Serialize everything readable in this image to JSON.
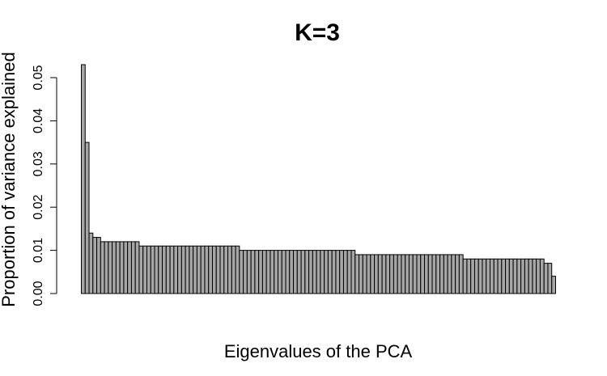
{
  "chart_data": {
    "type": "bar",
    "title": "K=3",
    "xlabel": "Eigenvalues of the PCA",
    "ylabel": "Proportion of variance explained",
    "ylim": [
      0,
      0.055
    ],
    "yticks": [
      "0.00",
      "0.01",
      "0.02",
      "0.03",
      "0.04",
      "0.05"
    ],
    "grid": false,
    "bar_fill": "#a6a6a6",
    "bar_stroke": "#000000",
    "values": [
      0.053,
      0.035,
      0.014,
      0.013,
      0.013,
      0.012,
      0.012,
      0.012,
      0.012,
      0.012,
      0.012,
      0.012,
      0.012,
      0.012,
      0.012,
      0.011,
      0.011,
      0.011,
      0.011,
      0.011,
      0.011,
      0.011,
      0.011,
      0.011,
      0.011,
      0.011,
      0.011,
      0.011,
      0.011,
      0.011,
      0.011,
      0.011,
      0.011,
      0.011,
      0.011,
      0.011,
      0.011,
      0.011,
      0.011,
      0.011,
      0.011,
      0.01,
      0.01,
      0.01,
      0.01,
      0.01,
      0.01,
      0.01,
      0.01,
      0.01,
      0.01,
      0.01,
      0.01,
      0.01,
      0.01,
      0.01,
      0.01,
      0.01,
      0.01,
      0.01,
      0.01,
      0.01,
      0.01,
      0.01,
      0.01,
      0.01,
      0.01,
      0.01,
      0.01,
      0.01,
      0.01,
      0.009,
      0.009,
      0.009,
      0.009,
      0.009,
      0.009,
      0.009,
      0.009,
      0.009,
      0.009,
      0.009,
      0.009,
      0.009,
      0.009,
      0.009,
      0.009,
      0.009,
      0.009,
      0.009,
      0.009,
      0.009,
      0.009,
      0.009,
      0.009,
      0.009,
      0.009,
      0.009,
      0.009,
      0.008,
      0.008,
      0.008,
      0.008,
      0.008,
      0.008,
      0.008,
      0.008,
      0.008,
      0.008,
      0.008,
      0.008,
      0.008,
      0.008,
      0.008,
      0.008,
      0.008,
      0.008,
      0.008,
      0.008,
      0.008,
      0.007,
      0.007,
      0.004
    ]
  }
}
